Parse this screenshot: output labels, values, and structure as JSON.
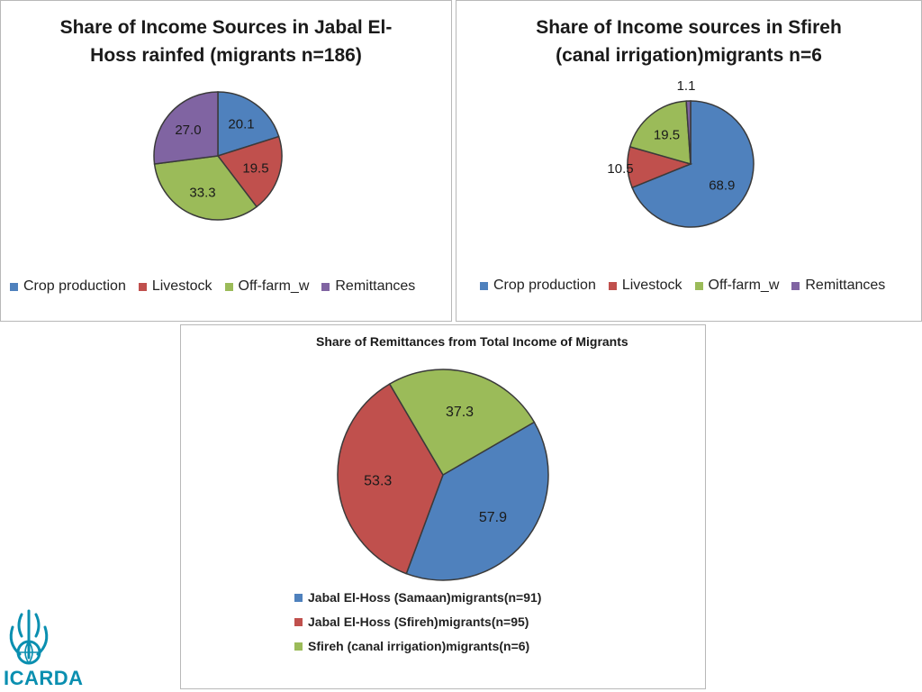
{
  "colors": {
    "blue": "#4f81bd",
    "red": "#c0504d",
    "green": "#9bbb59",
    "purple": "#8064a2",
    "logo": "#0a8fb0"
  },
  "chart_data": [
    {
      "type": "pie",
      "title": "Share of Income Sources in Jabal El-Hoss rainfed (migrants n=186)",
      "categories": [
        "Crop production",
        "Livestock",
        "Off-farm_w",
        "Remittances"
      ],
      "values": [
        20.1,
        19.5,
        33.3,
        27.0
      ],
      "labels": [
        "20.1",
        "19.5",
        "33.3",
        "27.0"
      ],
      "legend_position": "bottom"
    },
    {
      "type": "pie",
      "title": "Share of Income sources in Sfireh (canal irrigation)migrants n=6",
      "categories": [
        "Crop production",
        "Livestock",
        "Off-farm_w",
        "Remittances"
      ],
      "values": [
        68.9,
        10.5,
        19.5,
        1.1
      ],
      "labels": [
        "68.9",
        "10.5",
        "19.5",
        "1.1"
      ],
      "legend_position": "bottom"
    },
    {
      "type": "pie",
      "title": "Share of Remittances from Total Income of Migrants",
      "categories": [
        "Jabal El-Hoss (Samaan)migrants(n=91)",
        "Jabal El-Hoss (Sfireh)migrants(n=95)",
        "Sfireh (canal irrigation)migrants(n=6)"
      ],
      "values": [
        57.9,
        53.3,
        37.3
      ],
      "labels": [
        "57.9",
        "53.3",
        "37.3"
      ],
      "legend_position": "bottom"
    }
  ],
  "logo": {
    "name": "ICARDA"
  }
}
